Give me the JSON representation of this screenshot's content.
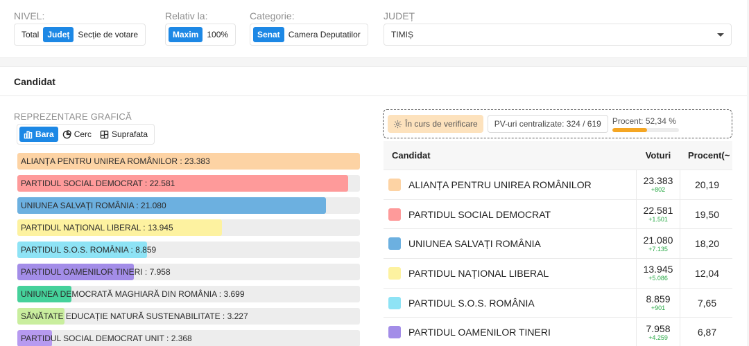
{
  "filters": {
    "nivel": {
      "label": "NIVEL:",
      "options": [
        "Total",
        "Județ",
        "Secție de votare"
      ],
      "active": 1
    },
    "relativ": {
      "label": "Relativ la:",
      "options": [
        "Maxim",
        "100%"
      ],
      "active": 0
    },
    "categorie": {
      "label": "Categorie:",
      "options": [
        "Senat",
        "Camera Deputatilor"
      ],
      "active": 0
    },
    "judet": {
      "label": "JUDEȚ",
      "value": "TIMIȘ"
    }
  },
  "panel": {
    "title": "Candidat",
    "repr_label": "REPREZENTARE GRAFICĂ",
    "chart_tabs": [
      {
        "label": "Bara",
        "icon": "bar-chart-icon"
      },
      {
        "label": "Cerc",
        "icon": "pie-chart-icon"
      },
      {
        "label": "Suprafata",
        "icon": "treemap-icon"
      }
    ]
  },
  "bars": [
    {
      "label": "ALIANȚA PENTRU UNIREA ROMÂNILOR : 23.383",
      "value": 23383,
      "color": "#fdd3a4"
    },
    {
      "label": "PARTIDUL SOCIAL DEMOCRAT : 22.581",
      "value": 22581,
      "color": "#fe9a9a"
    },
    {
      "label": "UNIUNEA SALVAȚI ROMÂNIA : 21.080",
      "value": 21080,
      "color": "#6cb0e0"
    },
    {
      "label": "PARTIDUL NAȚIONAL LIBERAL : 13.945",
      "value": 13945,
      "color": "#fdf2a0"
    },
    {
      "label": "PARTIDUL S.O.S. ROMÂNIA : 8.859",
      "value": 8859,
      "color": "#8ee3f5"
    },
    {
      "label": "PARTIDUL OAMENILOR TINERI : 7.958",
      "value": 7958,
      "color": "#a38de8"
    },
    {
      "label": "UNIUNEA DEMOCRATĂ MAGHIARĂ DIN ROMÂNIA : 3.699",
      "value": 3699,
      "color": "#45d19b"
    },
    {
      "label": "SĂNĂTATE EDUCAȚIE NATURĂ SUSTENABILITATE : 3.227",
      "value": 3227,
      "color": "#c9ee9e"
    },
    {
      "label": "PARTIDUL SOCIAL DEMOCRAT UNIT : 2.368",
      "value": 2368,
      "color": "#b79af0"
    }
  ],
  "bars_max": 23383,
  "status": {
    "verif_label": "În curs de verificare",
    "pv_label": "PV-uri centralizate: 324 / 619",
    "pct_label": "Procent: 52,34 %",
    "pct_value": 52.34
  },
  "table": {
    "headers": {
      "candidat": "Candidat",
      "voturi": "Voturi",
      "procent": "Procent(~"
    },
    "rows": [
      {
        "name": "ALIANȚA PENTRU UNIREA ROMÂNILOR",
        "votes": "23.383",
        "delta": "+802",
        "pct": "20,19",
        "color": "#fdd3a4"
      },
      {
        "name": "PARTIDUL SOCIAL DEMOCRAT",
        "votes": "22.581",
        "delta": "+1.501",
        "pct": "19,50",
        "color": "#fe9a9a"
      },
      {
        "name": "UNIUNEA SALVAȚI ROMÂNIA",
        "votes": "21.080",
        "delta": "+7.135",
        "pct": "18,20",
        "color": "#6cb0e0"
      },
      {
        "name": "PARTIDUL NAȚIONAL LIBERAL",
        "votes": "13.945",
        "delta": "+5.086",
        "pct": "12,04",
        "color": "#fdf2a0"
      },
      {
        "name": "PARTIDUL S.O.S. ROMÂNIA",
        "votes": "8.859",
        "delta": "+901",
        "pct": "7,65",
        "color": "#8ee3f5"
      },
      {
        "name": "PARTIDUL OAMENILOR TINERI",
        "votes": "7.958",
        "delta": "+4.259",
        "pct": "6,87",
        "color": "#a38de8"
      }
    ]
  }
}
